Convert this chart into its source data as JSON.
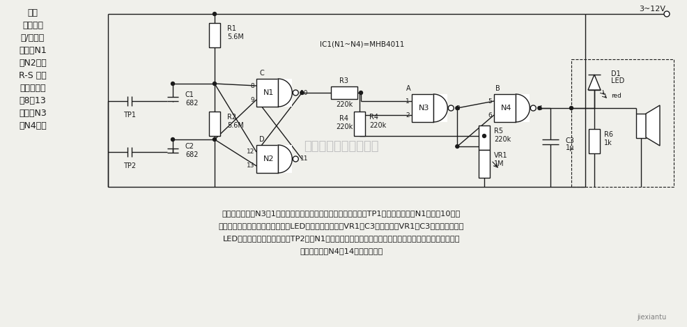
{
  "bg_color": "#f0f0eb",
  "fig_width": 9.87,
  "fig_height": 4.69,
  "supply_label": "3~12V",
  "ic_label": "IC1(N1~N4)=MHB4011",
  "left_text": [
    "触摸",
    "式单片闪",
    "光/蜂鸣器",
    "该电路N1",
    "和N2构成",
    "R-S 触发",
    "器，触发端",
    "为8和13",
    "脚；由N3",
    "和N4组成"
  ],
  "bottom_text": [
    "受控振荡，只有N3在1脚处于高电平时，振荡器才工作。当指触板TP1被手指桥接时，N1输出端10脚转",
    "换为高电平，振荡器就振荡，此时LED闪光，闪光频率由VR1和C3决定。改变VR1和C3的值，就可改变",
    "LED的闪光频率。当手指桥接TP2时，N1输出低电平，振荡器就停止工作。若要外加蜂鸣器，可用压电元",
    "件再把它接到N4的14脚和接地端。"
  ],
  "watermark": "杭州将睿科技有限公司",
  "corner_brand": "jiexiantu"
}
